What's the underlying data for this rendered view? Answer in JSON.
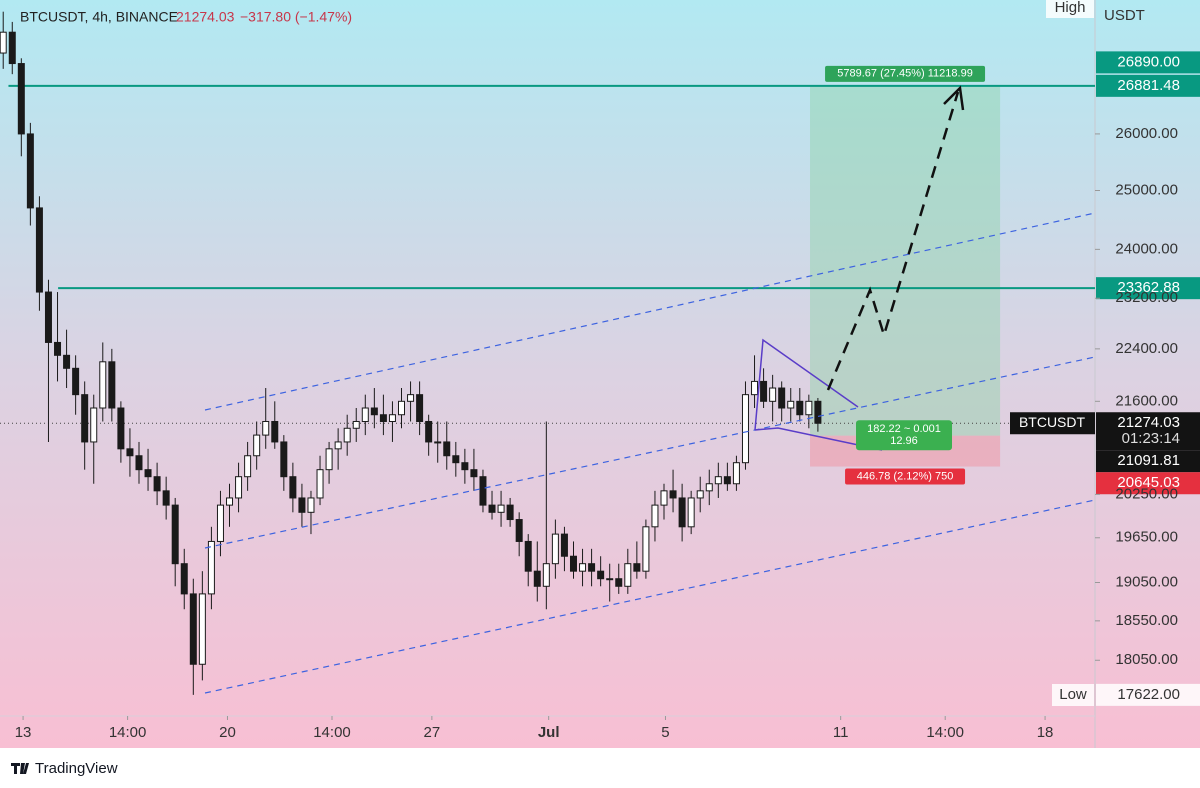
{
  "chart_data": {
    "type": "candlestick",
    "title": "BTCUSDT, 4h, BINANCE",
    "last_price": 21274.03,
    "change": "−317.80 (−1.47%)",
    "symbol": "BTCUSDT",
    "countdown": "01:23:14",
    "axis_unit": "USDT",
    "high_label": "High",
    "low_label": "Low",
    "low": {
      "value": 17622,
      "label": "17622.00"
    },
    "brand": "TradingView",
    "log_scale": true,
    "up_color": "#ffffff",
    "down_color": "#1a1a1a",
    "xlim": [
      -0.79,
      36.71
    ],
    "ylim": [
      17020,
      28530
    ],
    "xticks": [
      {
        "value": 0,
        "label": "13"
      },
      {
        "value": 3.58,
        "label": "14:00"
      },
      {
        "value": 7,
        "label": "20"
      },
      {
        "value": 10.58,
        "label": "14:00"
      },
      {
        "value": 14,
        "label": "27"
      },
      {
        "value": 18,
        "label": "Jul"
      },
      {
        "value": 22,
        "label": "5"
      },
      {
        "value": 28,
        "label": "11"
      },
      {
        "value": 31.58,
        "label": "14:00"
      },
      {
        "value": 35,
        "label": "18"
      }
    ],
    "yticks": [
      {
        "value": 26000,
        "label": "26000.00"
      },
      {
        "value": 25000,
        "label": "25000.00"
      },
      {
        "value": 24000,
        "label": "24000.00"
      },
      {
        "value": 23200,
        "label": "23200.00"
      },
      {
        "value": 22400,
        "label": "22400.00"
      },
      {
        "value": 21600,
        "label": "21600.00"
      },
      {
        "value": 20250,
        "label": "20250.00"
      },
      {
        "value": 19650,
        "label": "19650.00"
      },
      {
        "value": 19050,
        "label": "19050.00"
      },
      {
        "value": 18550,
        "label": "18550.00"
      },
      {
        "value": 18050,
        "label": "18050.00"
      }
    ],
    "levels": [
      {
        "value": 26881.48,
        "label": "26881.48",
        "color": "#089981",
        "start": -0.5
      },
      {
        "value": 23362.88,
        "label": "23362.88",
        "color": "#089981",
        "start": 1.2
      }
    ],
    "extra_badge": {
      "value": 26890,
      "label": "26890.00",
      "color": "#089981"
    },
    "position": {
      "start": 26.95,
      "end": 33.46,
      "target": 26881.48,
      "entry": {
        "value": 21091.81,
        "label": "21091.81"
      },
      "stop": {
        "value": 20645.03,
        "label": "20645.03"
      },
      "target_text": "5789.67 (27.45%) 11218.99",
      "entry_text": [
        "182.22 ~ 0.001",
        "12.96"
      ],
      "stop_text": "446.78 (2.12%) 750"
    },
    "candles": {
      "x": [
        -0.68,
        -0.37,
        -0.06,
        0.25,
        0.56,
        0.87,
        1.18,
        1.49,
        1.8,
        2.11,
        2.42,
        2.73,
        3.04,
        3.35,
        3.66,
        3.97,
        4.28,
        4.59,
        4.9,
        5.21,
        5.52,
        5.83,
        6.14,
        6.45,
        6.76,
        7.07,
        7.38,
        7.69,
        8.0,
        8.31,
        8.62,
        8.93,
        9.24,
        9.55,
        9.86,
        10.17,
        10.48,
        10.79,
        11.1,
        11.41,
        11.72,
        12.03,
        12.34,
        12.65,
        12.96,
        13.27,
        13.58,
        13.89,
        14.2,
        14.51,
        14.82,
        15.13,
        15.44,
        15.75,
        16.06,
        16.37,
        16.68,
        16.99,
        17.3,
        17.61,
        17.92,
        18.23,
        18.54,
        18.85,
        19.16,
        19.47,
        19.78,
        20.09,
        20.4,
        20.71,
        21.02,
        21.33,
        21.64,
        21.95,
        22.26,
        22.57,
        22.88,
        23.19,
        23.5,
        23.81,
        24.12,
        24.43,
        24.74,
        25.05,
        25.36,
        25.67,
        25.98,
        26.29,
        26.6,
        26.91,
        27.22
      ],
      "open": [
        27500,
        27900,
        27300,
        26000,
        24700,
        23300,
        22500,
        22300,
        22100,
        21700,
        21000,
        21500,
        22200,
        21500,
        20900,
        20800,
        20600,
        20500,
        20300,
        20100,
        19300,
        18900,
        18000,
        18900,
        19600,
        20100,
        20200,
        20500,
        20800,
        21100,
        21300,
        21000,
        20500,
        20200,
        20000,
        20200,
        20600,
        20900,
        21000,
        21200,
        21300,
        21500,
        21400,
        21300,
        21400,
        21600,
        21700,
        21300,
        21000,
        21000,
        20800,
        20700,
        20600,
        20500,
        20100,
        20000,
        20100,
        19900,
        19600,
        19200,
        19000,
        19300,
        19700,
        19400,
        19200,
        19300,
        19200,
        19100,
        19100,
        19000,
        19300,
        19200,
        19800,
        20100,
        20300,
        20200,
        19800,
        20200,
        20300,
        20400,
        20500,
        20400,
        20700,
        21700,
        21900,
        21600,
        21800,
        21500,
        21600,
        21400,
        21600
      ],
      "high": [
        28300,
        28100,
        27400,
        26200,
        24900,
        23500,
        23300,
        22700,
        22300,
        21900,
        21700,
        22500,
        22400,
        21600,
        21200,
        21000,
        20900,
        20700,
        20500,
        20200,
        19500,
        19100,
        19200,
        19800,
        20300,
        20400,
        20700,
        21000,
        21300,
        21800,
        21600,
        21100,
        20700,
        20400,
        20300,
        20800,
        21000,
        21200,
        21400,
        21500,
        21700,
        21800,
        21700,
        21600,
        21800,
        21900,
        21900,
        21400,
        21300,
        21300,
        21000,
        20900,
        20900,
        20600,
        20300,
        20300,
        20200,
        20000,
        19700,
        19600,
        21300,
        19900,
        19800,
        19600,
        19500,
        19500,
        19400,
        19300,
        19300,
        19500,
        19600,
        19900,
        20300,
        20400,
        20600,
        20400,
        20300,
        20500,
        20600,
        20700,
        20700,
        20800,
        21900,
        22300,
        22100,
        22000,
        21900,
        21800,
        21800,
        21700,
        21650
      ],
      "low": [
        27200,
        27100,
        25600,
        24400,
        23000,
        21000,
        21900,
        21800,
        21400,
        20600,
        20400,
        21300,
        21300,
        20700,
        20500,
        20400,
        20300,
        20100,
        19900,
        19000,
        18700,
        17622,
        17800,
        18700,
        19400,
        19800,
        20000,
        20300,
        20600,
        20900,
        20900,
        20300,
        20000,
        19800,
        19700,
        20100,
        20400,
        20600,
        20800,
        21000,
        21100,
        21200,
        21100,
        21000,
        21200,
        21300,
        21100,
        20800,
        20700,
        20600,
        20500,
        20400,
        20300,
        20000,
        19900,
        19800,
        19800,
        19400,
        19000,
        18800,
        18700,
        19100,
        19200,
        19100,
        19000,
        19000,
        19000,
        18800,
        18900,
        18900,
        19100,
        19100,
        19600,
        19900,
        20000,
        19600,
        19700,
        20000,
        20100,
        20200,
        20300,
        20300,
        20600,
        21500,
        21500,
        21300,
        21300,
        21300,
        21300,
        21200,
        21150
      ],
      "close": [
        27900,
        27300,
        26000,
        24700,
        23300,
        22500,
        22300,
        22100,
        21700,
        21000,
        21500,
        22200,
        21500,
        20900,
        20800,
        20600,
        20500,
        20300,
        20100,
        19300,
        18900,
        18000,
        18900,
        19600,
        20100,
        20200,
        20500,
        20800,
        21100,
        21300,
        21000,
        20500,
        20200,
        20000,
        20200,
        20600,
        20900,
        21000,
        21200,
        21300,
        21500,
        21400,
        21300,
        21400,
        21600,
        21700,
        21300,
        21000,
        21000,
        20800,
        20700,
        20600,
        20500,
        20100,
        20000,
        20100,
        19900,
        19600,
        19200,
        19000,
        19300,
        19700,
        19400,
        19200,
        19300,
        19200,
        19100,
        19100,
        19000,
        19300,
        19200,
        19800,
        20100,
        20300,
        20200,
        19800,
        20200,
        20300,
        20400,
        20500,
        20400,
        20700,
        21700,
        21900,
        21600,
        21800,
        21500,
        21600,
        21400,
        21600,
        21274.03
      ]
    }
  }
}
